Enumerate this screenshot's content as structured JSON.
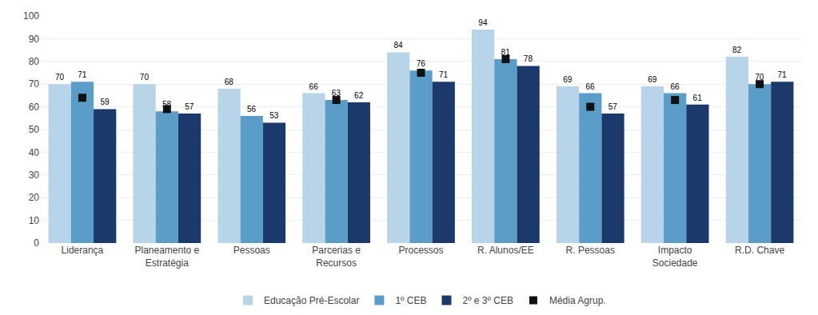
{
  "chart_data": {
    "type": "bar",
    "categories": [
      "Liderança",
      "Planeamento e\nEstratégia",
      "Pessoas",
      "Parcerias e\nRecursos",
      "Processos",
      "R. Alunos/EE",
      "R. Pessoas",
      "Impacto\nSociedade",
      "R.D. Chave"
    ],
    "series": [
      {
        "name": "Educação Pré-Escolar",
        "type": "bar",
        "color": "#b8d4e8",
        "data_labels": true,
        "values": [
          70,
          70,
          68,
          66,
          84,
          94,
          69,
          69,
          82
        ]
      },
      {
        "name": "1º CEB",
        "type": "bar",
        "color": "#5b9dc9",
        "data_labels": true,
        "values": [
          71,
          58,
          56,
          63,
          76,
          81,
          66,
          66,
          70
        ]
      },
      {
        "name": "2º e 3º CEB",
        "type": "bar",
        "color": "#1b3a6b",
        "data_labels": true,
        "values": [
          59,
          57,
          53,
          62,
          71,
          78,
          57,
          61,
          71
        ]
      },
      {
        "name": "Média Agrup.",
        "type": "scatter",
        "marker": "square",
        "color": "#111111",
        "values": [
          64,
          59,
          null,
          63,
          75,
          81,
          60,
          63,
          70
        ]
      }
    ],
    "ylim": [
      0,
      100
    ],
    "yticks": [
      0,
      10,
      20,
      30,
      40,
      50,
      60,
      70,
      80,
      90,
      100
    ],
    "grid": true,
    "legend": "bottom"
  }
}
